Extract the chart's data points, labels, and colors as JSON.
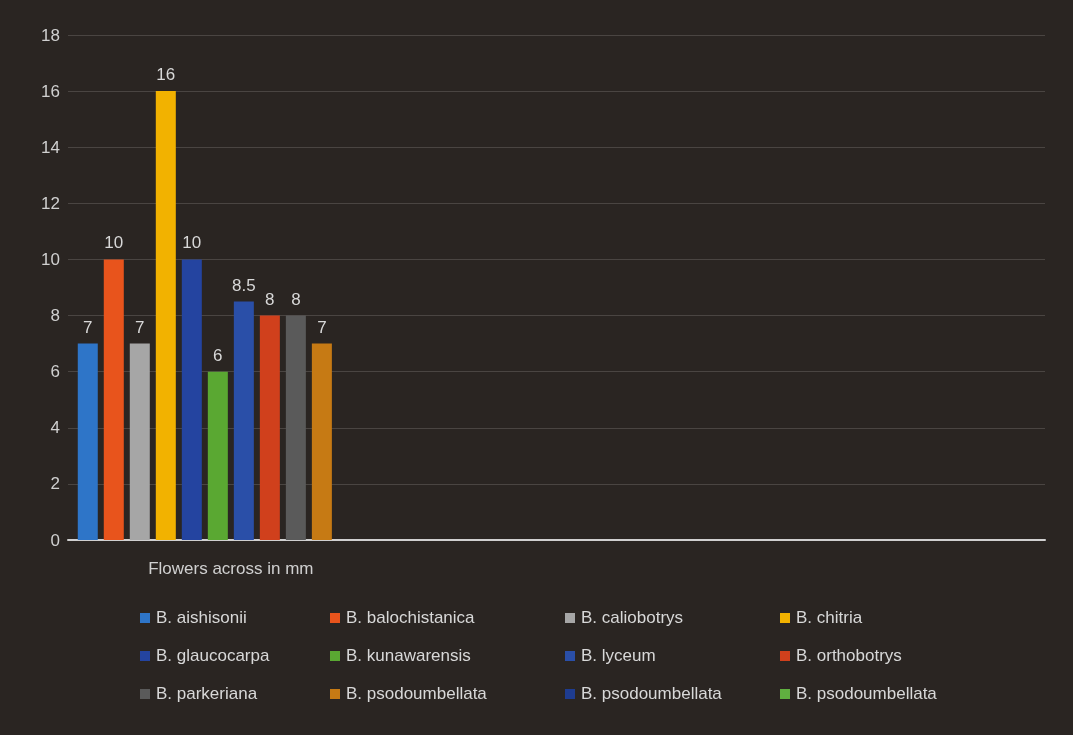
{
  "chart_data": {
    "type": "bar",
    "categories": [
      "Flowers across in mm",
      null,
      null
    ],
    "series": [
      {
        "name": "B. aishisonii",
        "color": "#2e75c8",
        "values": [
          7,
          null,
          null
        ]
      },
      {
        "name": "B. balochistanica",
        "color": "#e8541c",
        "values": [
          10,
          null,
          null
        ]
      },
      {
        "name": "B. caliobotrys",
        "color": "#a6a6a6",
        "values": [
          7,
          null,
          null
        ]
      },
      {
        "name": "B. chitria",
        "color": "#f2b200",
        "values": [
          16,
          null,
          null
        ]
      },
      {
        "name": "B. glaucocarpa",
        "color": "#2444a0",
        "values": [
          10,
          null,
          null
        ]
      },
      {
        "name": "B. kunawarensis",
        "color": "#5aa832",
        "values": [
          6,
          null,
          null
        ]
      },
      {
        "name": "B. lyceum",
        "color": "#2a4fa8",
        "values": [
          8.5,
          null,
          null
        ]
      },
      {
        "name": "B. orthobotrys",
        "color": "#d0401c",
        "values": [
          8,
          null,
          null
        ]
      },
      {
        "name": "B. parkeriana",
        "color": "#5a5a5a",
        "values": [
          8,
          null,
          null
        ]
      },
      {
        "name": "B. psodoumbellata",
        "color": "#c67a14",
        "values": [
          7,
          null,
          null
        ]
      },
      {
        "name": "B. psodoumbellata",
        "color": "#1e3c90",
        "values": [
          null,
          null,
          null
        ]
      },
      {
        "name": "B. psodoumbellata",
        "color": "#60b040",
        "values": [
          null,
          null,
          null
        ]
      }
    ],
    "ylim": [
      0,
      18
    ],
    "yticks": [
      0,
      2,
      4,
      6,
      8,
      10,
      12,
      14,
      16,
      18
    ],
    "grid": "y",
    "data_labels": true,
    "legend": "bottom"
  }
}
